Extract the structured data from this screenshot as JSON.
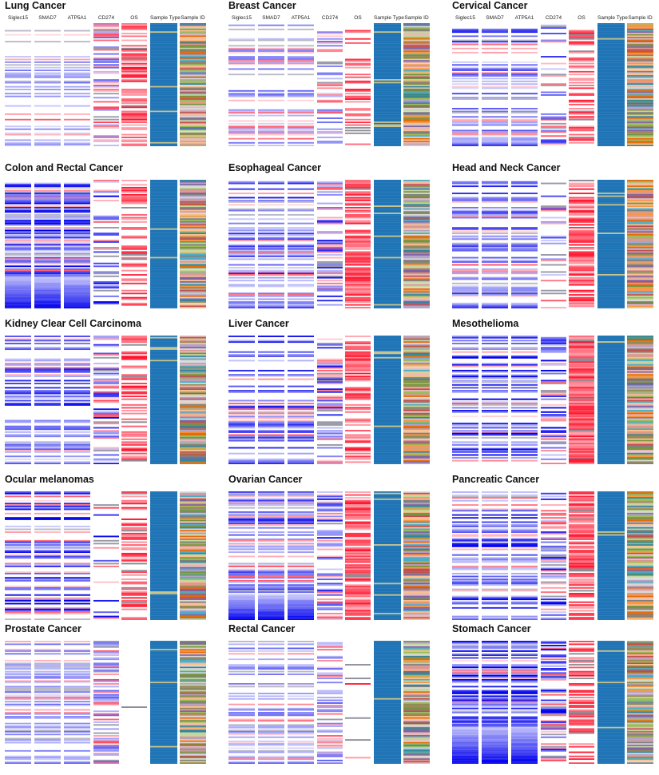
{
  "chart_data": {
    "type": "heatmap",
    "column_labels": [
      "Siglec15",
      "SMAD7",
      "ATP5A1",
      "CD274",
      "OS",
      "Sample Type",
      "Sample ID"
    ],
    "panels": [
      {
        "title": "Lung Cancer",
        "show_labels": true,
        "bottom_blue": 0.0,
        "stripe": 0.28,
        "os_red": 0.55,
        "tone": "pale",
        "cd274": "mixed"
      },
      {
        "title": "Breast Cancer",
        "show_labels": true,
        "bottom_blue": 0.0,
        "stripe": 0.4,
        "os_red": 0.35,
        "tone": "pale",
        "cd274": "mixed"
      },
      {
        "title": "Cervical Cancer",
        "show_labels": true,
        "bottom_blue": 0.05,
        "stripe": 0.5,
        "os_red": 0.55,
        "tone": "medium",
        "cd274": "white"
      },
      {
        "title": "Colon and Rectal Cancer",
        "show_labels": false,
        "bottom_blue": 0.25,
        "stripe": 0.85,
        "os_red": 0.45,
        "tone": "deep",
        "cd274": "white"
      },
      {
        "title": "Esophageal Cancer",
        "show_labels": false,
        "bottom_blue": 0.03,
        "stripe": 0.55,
        "os_red": 0.75,
        "tone": "medium",
        "cd274": "mixed"
      },
      {
        "title": "Head and Neck Cancer",
        "show_labels": false,
        "bottom_blue": 0.05,
        "stripe": 0.55,
        "os_red": 0.7,
        "tone": "medium",
        "cd274": "white"
      },
      {
        "title": "Kidney Clear Cell Carcinoma",
        "show_labels": false,
        "bottom_blue": 0.02,
        "stripe": 0.6,
        "os_red": 0.55,
        "tone": "medium",
        "cd274": "mixed"
      },
      {
        "title": "Liver Cancer",
        "show_labels": false,
        "bottom_blue": 0.04,
        "stripe": 0.55,
        "os_red": 0.6,
        "tone": "medium",
        "cd274": "mixed"
      },
      {
        "title": "Mesothelioma",
        "show_labels": false,
        "bottom_blue": 0.0,
        "stripe": 0.6,
        "os_red": 0.95,
        "tone": "deep",
        "cd274": "mixed"
      },
      {
        "title": "Ocular melanomas",
        "show_labels": false,
        "bottom_blue": 0.0,
        "stripe": 0.5,
        "os_red": 0.5,
        "tone": "deep",
        "cd274": "sparse"
      },
      {
        "title": "Ovarian Cancer",
        "show_labels": false,
        "bottom_blue": 0.2,
        "stripe": 0.6,
        "os_red": 0.8,
        "tone": "medium",
        "cd274": "mixed"
      },
      {
        "title": "Pancreatic Cancer",
        "show_labels": false,
        "bottom_blue": 0.02,
        "stripe": 0.7,
        "os_red": 0.75,
        "tone": "deep",
        "cd274": "mixed"
      },
      {
        "title": "Prostate Cancer",
        "show_labels": false,
        "bottom_blue": 0.02,
        "stripe": 0.5,
        "os_red": 0.03,
        "tone": "pale",
        "cd274": "mixed"
      },
      {
        "title": "Rectal Cancer",
        "show_labels": false,
        "bottom_blue": 0.02,
        "stripe": 0.5,
        "os_red": 0.03,
        "tone": "pale",
        "cd274": "mixed"
      },
      {
        "title": "Stomach Cancer",
        "show_labels": false,
        "bottom_blue": 0.3,
        "stripe": 0.8,
        "os_red": 0.45,
        "tone": "deep",
        "cd274": "mixed"
      }
    ],
    "colors": {
      "high": "#0000ee",
      "mid": "#ffffff",
      "low": "#e8102a",
      "sample_type": "#1f74b6",
      "sample_id_palette": [
        "#c0504d",
        "#9bbb59",
        "#f79646",
        "#8064a2",
        "#4bacc6",
        "#e6b8b7",
        "#948a54",
        "#d99694",
        "#77933c",
        "#b3a2c7",
        "#fac090",
        "#7f7f7f",
        "#e46c0a",
        "#31859c",
        "#d9d9d9",
        "#c3d69b"
      ]
    },
    "legend": "none"
  }
}
